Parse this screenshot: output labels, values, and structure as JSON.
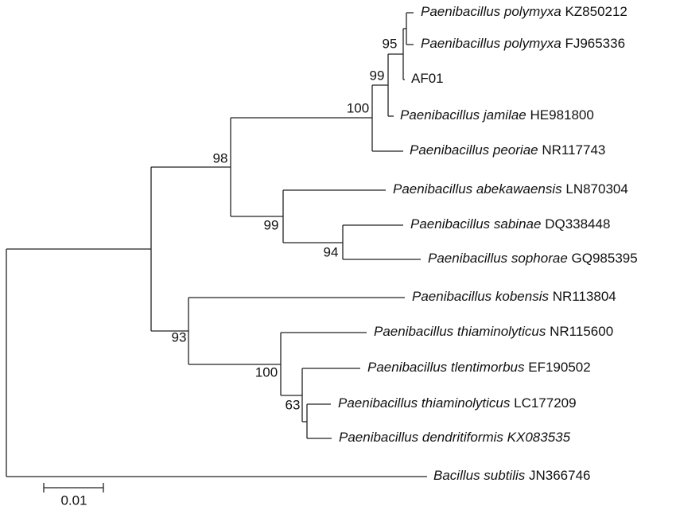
{
  "leaves": [
    {
      "name": "Paenibacillus polymyxa",
      "accession": "KZ850212"
    },
    {
      "name": "Paenibacillus polymyxa",
      "accession": "FJ965336"
    },
    {
      "name": "AF01"
    },
    {
      "name": "Paenibacillus jamilae",
      "accession": "HE981800"
    },
    {
      "name": "Paenibacillus peoriae",
      "accession": "NR117743"
    },
    {
      "name": "Paenibacillus abekawaensis",
      "accession": "LN870304"
    },
    {
      "name": "Paenibacillus sabinae",
      "accession": "DQ338448"
    },
    {
      "name": "Paenibacillus sophorae",
      "accession": "GQ985395"
    },
    {
      "name": "Paenibacillus kobensis",
      "accession": "NR113804"
    },
    {
      "name": "Paenibacillus thiaminolyticus",
      "accession": "NR115600"
    },
    {
      "name": "Paenibacillus tlentimorbus",
      "accession": "EF190502"
    },
    {
      "name": "Paenibacillus thiaminolyticus",
      "accession": "LC177209"
    },
    {
      "name": "Paenibacillus dendritiformis",
      "accession": "KX083535"
    },
    {
      "name": "Bacillus subtilis",
      "accession": "JN366746"
    }
  ],
  "bootstrap": [
    "95",
    "99",
    "100",
    "98",
    "99",
    "94",
    "93",
    "100",
    "63"
  ],
  "scale_bar": "0.01"
}
